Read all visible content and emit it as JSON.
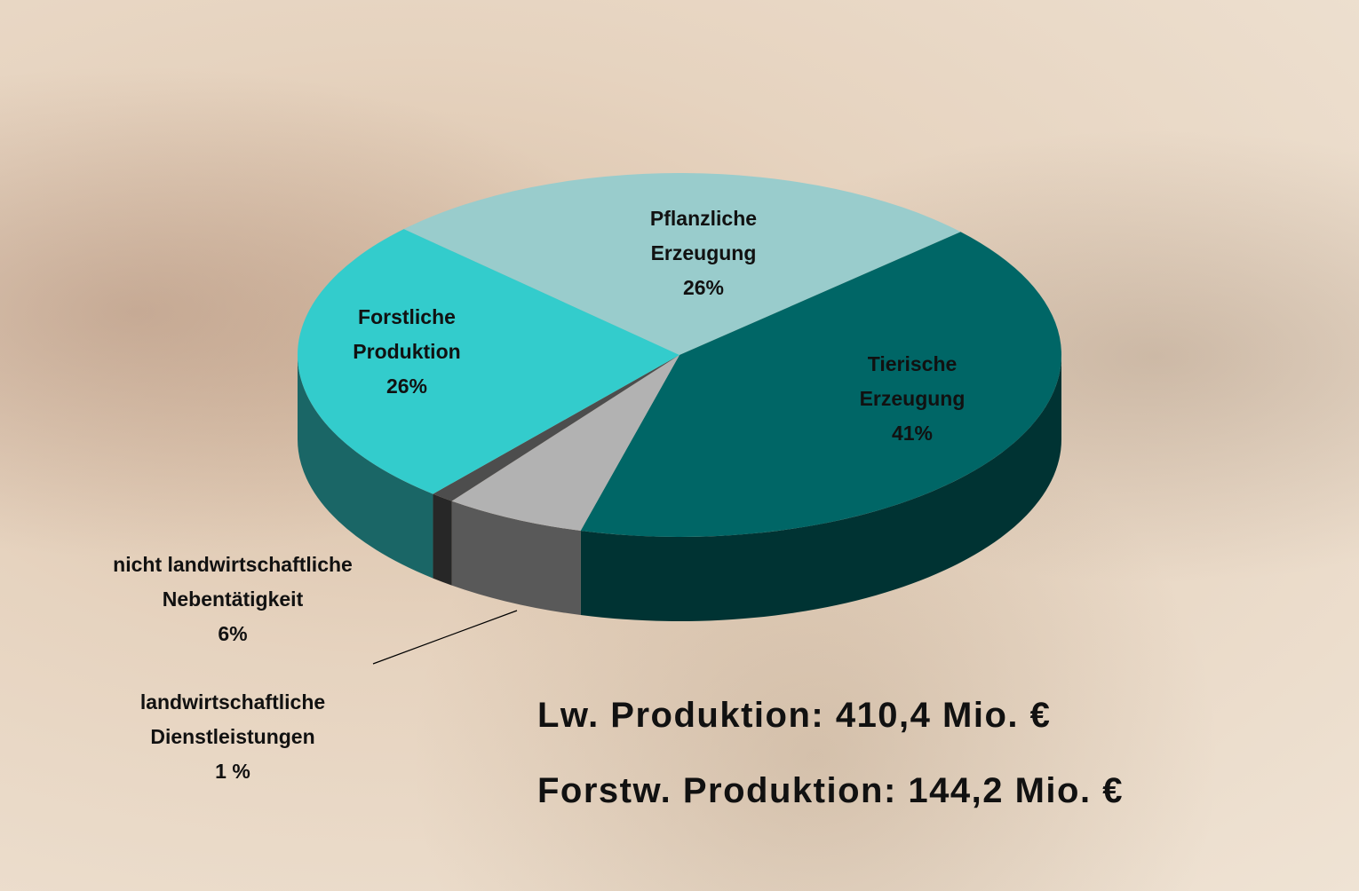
{
  "chart_data": {
    "type": "pie",
    "categories": [
      "Pflanzliche Erzeugung",
      "Tierische Erzeugung",
      "nicht landwirtschaftliche Nebentätigkeit",
      "landwirtschaftliche Dienstleistungen",
      "Forstliche Produktion"
    ],
    "values": [
      26,
      41,
      6,
      1,
      26
    ],
    "value_labels": [
      "26%",
      "41%",
      "6%",
      "1 %",
      "26%"
    ],
    "colors": [
      "#99cccc",
      "#006666",
      "#b2b2b2",
      "#4d4d4d",
      "#33cccc"
    ],
    "three_d": true,
    "annotations": [
      "Lw. Produktion: 410,4 Mio. €",
      "Forstw. Produktion: 144,2 Mio. €"
    ]
  }
}
